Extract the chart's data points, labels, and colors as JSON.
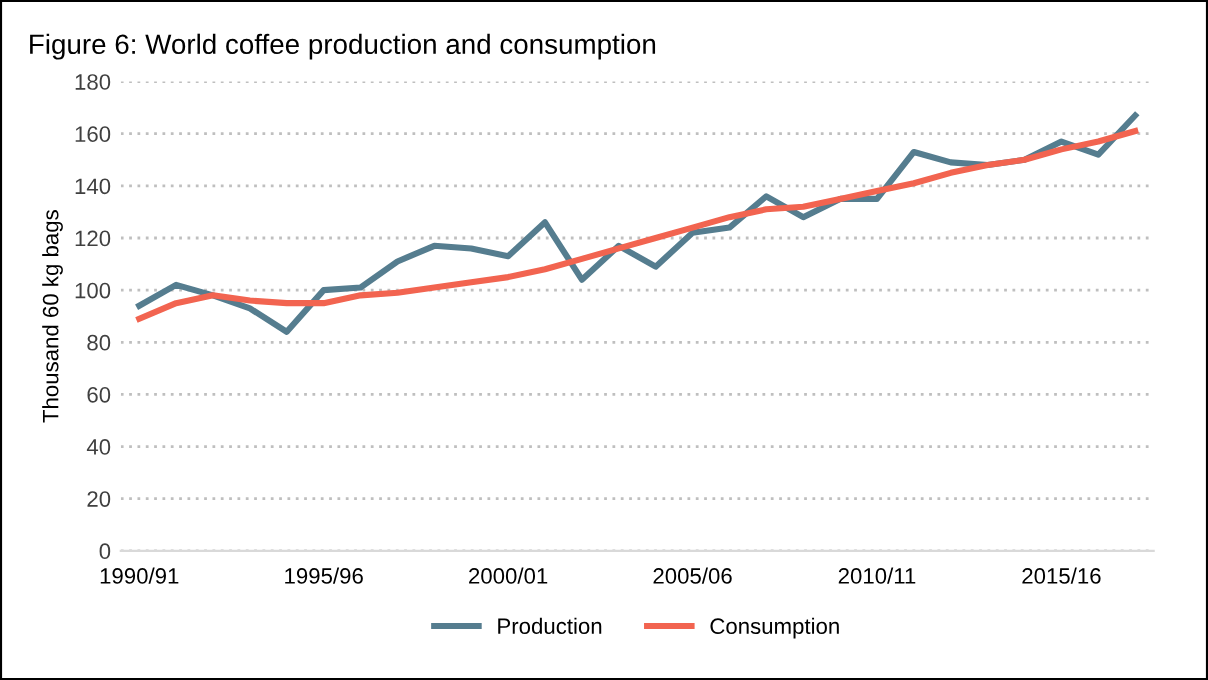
{
  "chart_data": {
    "type": "line",
    "title": "Figure 6: World coffee production and consumption",
    "ylabel": "Thousand 60 kg bags",
    "categories": [
      "1990/91",
      null,
      null,
      null,
      null,
      "1995/96",
      null,
      null,
      null,
      null,
      "2000/01",
      null,
      null,
      null,
      null,
      "2005/06",
      null,
      null,
      null,
      null,
      "2010/11",
      null,
      null,
      null,
      null,
      "2015/16",
      null,
      null
    ],
    "series": [
      {
        "name": "Production",
        "color": "#557d8f",
        "values": [
          94,
          102,
          98,
          93,
          84,
          100,
          101,
          111,
          117,
          116,
          113,
          126,
          104,
          117,
          109,
          122,
          124,
          136,
          128,
          135,
          135,
          153,
          149,
          148,
          150,
          157,
          152,
          167
        ]
      },
      {
        "name": "Consumption",
        "color": "#f26450",
        "values": [
          89,
          95,
          98,
          96,
          95,
          95,
          98,
          99,
          101,
          103,
          105,
          108,
          112,
          116,
          120,
          124,
          128,
          131,
          132,
          135,
          138,
          141,
          145,
          148,
          150,
          154,
          157,
          161
        ]
      }
    ],
    "ylim": [
      0,
      180
    ],
    "yticks": [
      0,
      20,
      40,
      60,
      80,
      100,
      120,
      140,
      160,
      180
    ],
    "grid": "y",
    "legend": "bottom",
    "line_style": "solid",
    "marker": "none"
  }
}
